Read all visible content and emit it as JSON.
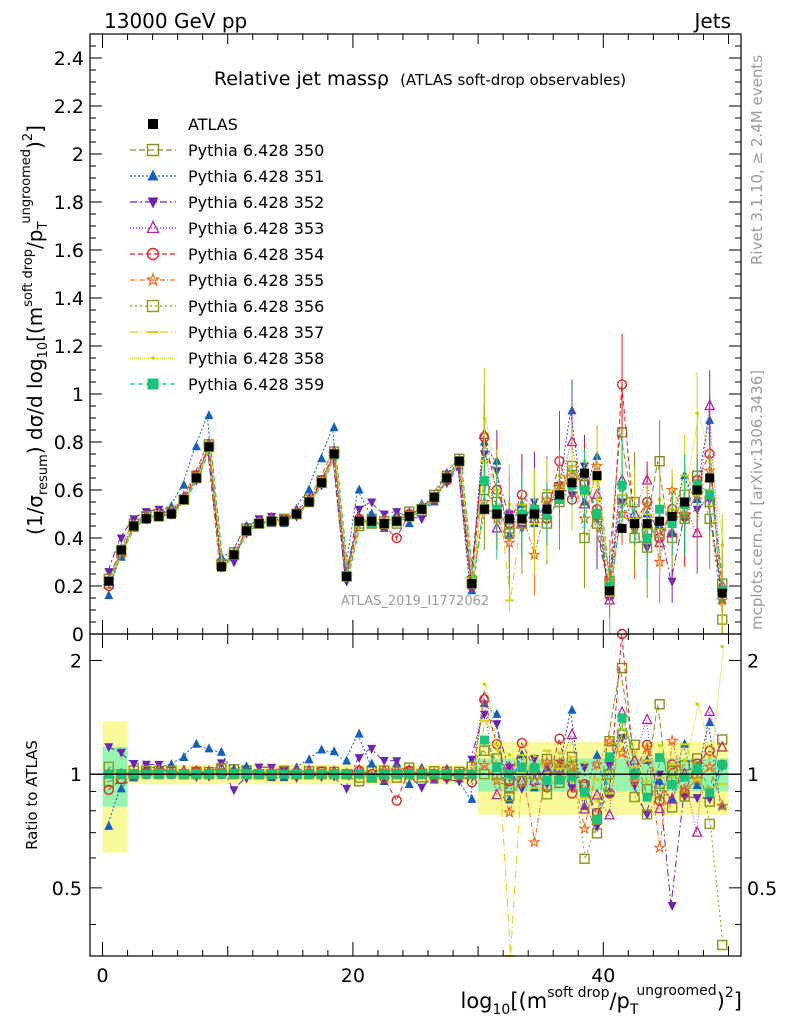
{
  "header": {
    "left": "13000 GeV pp",
    "right": "Jets"
  },
  "side_text": {
    "top": "Rivet 3.1.10, ≥ 2.4M events",
    "bottom": "mcplots.cern.ch [arXiv:1306.3436]"
  },
  "chart_data": {
    "type": "scatter",
    "title": "Relative jet massρ",
    "subtitle": "(ATLAS soft-drop observables)",
    "watermark": "ATLAS_2019_I1772062",
    "ylabel_top": "(1/σresum) dσ/d log10[(m soft drop/pT ungroomed)2]",
    "ylabel_bottom": "Ratio to ATLAS",
    "xlabel": "log10[(m soft drop/pT ungroomed)2]",
    "xlim": [
      -1,
      51
    ],
    "ylim_top": [
      0,
      2.5
    ],
    "ylim_bottom": [
      0.33,
      2.35
    ],
    "x_ticks": [
      "0",
      "20",
      "40"
    ],
    "y_ticks_top": [
      "0",
      "0.2",
      "0.4",
      "0.6",
      "0.8",
      "1",
      "1.2",
      "1.4",
      "1.6",
      "1.8",
      "2",
      "2.2",
      "2.4"
    ],
    "y_ticks_bottom": [
      "0.5",
      "1",
      "2"
    ],
    "legend": [
      {
        "label": "ATLAS",
        "color": "#000000",
        "marker": "square-filled"
      },
      {
        "label": "Pythia 6.428 350",
        "color": "#8c8c1e",
        "marker": "square-open"
      },
      {
        "label": "Pythia 6.428 351",
        "color": "#1560bd",
        "marker": "triangle-up"
      },
      {
        "label": "Pythia 6.428 352",
        "color": "#6a26b3",
        "marker": "triangle-down"
      },
      {
        "label": "Pythia 6.428 353",
        "color": "#b5259e",
        "marker": "triangle-open"
      },
      {
        "label": "Pythia 6.428 354",
        "color": "#e02424",
        "marker": "circle-open"
      },
      {
        "label": "Pythia 6.428 355",
        "color": "#f06a1c",
        "marker": "star"
      },
      {
        "label": "Pythia 6.428 356",
        "color": "#8a9a15",
        "marker": "square-open"
      },
      {
        "label": "Pythia 6.428 357",
        "color": "#d8d010",
        "marker": "dash"
      },
      {
        "label": "Pythia 6.428 358",
        "color": "#c6d613",
        "marker": "dot"
      },
      {
        "label": "Pythia 6.428 359",
        "color": "#18c47a",
        "marker": "square-filled"
      }
    ],
    "x": [
      0.5,
      1.5,
      2.5,
      3.5,
      4.5,
      5.5,
      6.5,
      7.5,
      8.5,
      9.5,
      10.5,
      11.5,
      12.5,
      13.5,
      14.5,
      15.5,
      16.5,
      17.5,
      18.5,
      19.5,
      20.5,
      21.5,
      22.5,
      23.5,
      24.5,
      25.5,
      26.5,
      27.5,
      28.5,
      29.5,
      30.5,
      31.5,
      32.5,
      33.5,
      34.5,
      35.5,
      36.5,
      37.5,
      38.5,
      39.5,
      40.5,
      41.5,
      42.5,
      43.5,
      44.5,
      45.5,
      46.5,
      47.5,
      48.5,
      49.5
    ],
    "atlas": [
      0.22,
      0.35,
      0.45,
      0.48,
      0.49,
      0.5,
      0.56,
      0.65,
      0.78,
      0.28,
      0.33,
      0.43,
      0.46,
      0.47,
      0.47,
      0.5,
      0.55,
      0.63,
      0.75,
      0.24,
      0.47,
      0.47,
      0.46,
      0.47,
      0.49,
      0.52,
      0.57,
      0.65,
      0.72,
      0.21,
      0.52,
      0.5,
      0.48,
      0.48,
      0.5,
      0.52,
      0.58,
      0.63,
      0.67,
      0.66,
      0.18,
      0.44,
      0.46,
      0.46,
      0.47,
      0.49,
      0.55,
      0.6,
      0.65,
      0.17
    ],
    "series": [
      {
        "name": "Pythia 6.428 350",
        "values": [
          0.21,
          0.34,
          0.46,
          0.49,
          0.5,
          0.51,
          0.56,
          0.66,
          0.79,
          0.29,
          0.34,
          0.44,
          0.46,
          0.47,
          0.48,
          0.5,
          0.56,
          0.64,
          0.76,
          0.24,
          0.45,
          0.48,
          0.47,
          0.46,
          0.51,
          0.51,
          0.58,
          0.66,
          0.73,
          0.22,
          0.6,
          0.55,
          0.44,
          0.52,
          0.5,
          0.57,
          0.55,
          0.7,
          0.62,
          0.46,
          0.22,
          0.84,
          0.55,
          0.42,
          0.72,
          0.4,
          0.58,
          0.66,
          0.55,
          0.21
        ]
      },
      {
        "name": "Pythia 6.428 351",
        "values": [
          0.16,
          0.32,
          0.44,
          0.5,
          0.51,
          0.53,
          0.62,
          0.78,
          0.91,
          0.32,
          0.34,
          0.45,
          0.47,
          0.46,
          0.46,
          0.52,
          0.6,
          0.73,
          0.86,
          0.26,
          0.6,
          0.5,
          0.44,
          0.5,
          0.46,
          0.54,
          0.55,
          0.67,
          0.7,
          0.18,
          0.8,
          0.72,
          0.41,
          0.54,
          0.46,
          0.54,
          0.57,
          0.93,
          0.55,
          0.74,
          0.16,
          0.62,
          0.46,
          0.5,
          0.45,
          0.42,
          0.66,
          0.56,
          0.89,
          0.14
        ]
      },
      {
        "name": "Pythia 6.428 352",
        "values": [
          0.26,
          0.4,
          0.48,
          0.51,
          0.52,
          0.5,
          0.56,
          0.64,
          0.77,
          0.3,
          0.3,
          0.42,
          0.48,
          0.49,
          0.48,
          0.49,
          0.55,
          0.62,
          0.74,
          0.22,
          0.52,
          0.55,
          0.5,
          0.51,
          0.49,
          0.48,
          0.56,
          0.63,
          0.69,
          0.23,
          0.75,
          0.68,
          0.5,
          0.44,
          0.55,
          0.49,
          0.62,
          0.58,
          0.7,
          0.48,
          0.19,
          0.55,
          0.43,
          0.36,
          0.47,
          0.22,
          0.48,
          0.52,
          0.56,
          0.18
        ]
      },
      {
        "name": "Pythia 6.428 353",
        "values": [
          0.22,
          0.35,
          0.45,
          0.49,
          0.5,
          0.51,
          0.57,
          0.66,
          0.79,
          0.29,
          0.33,
          0.43,
          0.46,
          0.48,
          0.47,
          0.51,
          0.56,
          0.63,
          0.76,
          0.24,
          0.48,
          0.46,
          0.47,
          0.48,
          0.5,
          0.52,
          0.57,
          0.66,
          0.72,
          0.21,
          0.83,
          0.44,
          0.5,
          0.46,
          0.48,
          0.53,
          0.6,
          0.8,
          0.54,
          0.58,
          0.14,
          0.64,
          0.5,
          0.64,
          0.38,
          0.42,
          0.55,
          0.42,
          0.95,
          0.2
        ]
      },
      {
        "name": "Pythia 6.428 354",
        "values": [
          0.2,
          0.34,
          0.45,
          0.48,
          0.49,
          0.5,
          0.56,
          0.66,
          0.78,
          0.28,
          0.33,
          0.43,
          0.46,
          0.47,
          0.48,
          0.5,
          0.55,
          0.64,
          0.75,
          0.24,
          0.48,
          0.47,
          0.45,
          0.4,
          0.5,
          0.52,
          0.56,
          0.64,
          0.72,
          0.2,
          0.82,
          0.6,
          0.46,
          0.58,
          0.52,
          0.48,
          0.72,
          0.56,
          0.63,
          0.52,
          0.16,
          1.04,
          0.46,
          0.55,
          0.4,
          0.52,
          0.49,
          0.64,
          0.75,
          0.18
        ]
      },
      {
        "name": "Pythia 6.428 355",
        "values": [
          0.22,
          0.35,
          0.45,
          0.48,
          0.5,
          0.5,
          0.56,
          0.65,
          0.78,
          0.28,
          0.33,
          0.43,
          0.46,
          0.47,
          0.47,
          0.5,
          0.55,
          0.63,
          0.75,
          0.24,
          0.47,
          0.46,
          0.47,
          0.48,
          0.49,
          0.53,
          0.57,
          0.65,
          0.71,
          0.21,
          0.55,
          0.48,
          0.38,
          0.5,
          0.33,
          0.56,
          0.62,
          0.66,
          0.48,
          0.7,
          0.22,
          0.5,
          0.44,
          0.54,
          0.3,
          0.6,
          0.5,
          0.58,
          0.68,
          0.14
        ]
      },
      {
        "name": "Pythia 6.428 356",
        "values": [
          0.23,
          0.35,
          0.45,
          0.49,
          0.49,
          0.51,
          0.56,
          0.65,
          0.78,
          0.29,
          0.33,
          0.43,
          0.46,
          0.47,
          0.48,
          0.5,
          0.55,
          0.63,
          0.75,
          0.24,
          0.46,
          0.46,
          0.46,
          0.47,
          0.49,
          0.52,
          0.57,
          0.65,
          0.72,
          0.22,
          0.52,
          0.5,
          0.42,
          0.46,
          0.5,
          0.46,
          0.6,
          0.66,
          0.4,
          0.5,
          0.18,
          0.56,
          0.4,
          0.36,
          0.42,
          0.5,
          0.48,
          0.6,
          0.48,
          0.06
        ]
      },
      {
        "name": "Pythia 6.428 357",
        "values": [
          0.22,
          0.35,
          0.45,
          0.48,
          0.49,
          0.5,
          0.56,
          0.65,
          0.78,
          0.28,
          0.33,
          0.43,
          0.46,
          0.47,
          0.47,
          0.5,
          0.55,
          0.63,
          0.75,
          0.24,
          0.47,
          0.46,
          0.46,
          0.47,
          0.49,
          0.52,
          0.57,
          0.65,
          0.72,
          0.21,
          0.72,
          0.6,
          0.14,
          0.54,
          0.46,
          0.6,
          0.6,
          0.7,
          0.58,
          0.64,
          0.16,
          0.58,
          0.48,
          0.5,
          0.46,
          0.52,
          0.66,
          0.58,
          0.6,
          0.16
        ]
      },
      {
        "name": "Pythia 6.428 358",
        "values": [
          0.22,
          0.35,
          0.45,
          0.48,
          0.49,
          0.5,
          0.56,
          0.65,
          0.78,
          0.28,
          0.33,
          0.43,
          0.46,
          0.47,
          0.47,
          0.5,
          0.55,
          0.63,
          0.75,
          0.24,
          0.47,
          0.46,
          0.46,
          0.47,
          0.49,
          0.52,
          0.57,
          0.66,
          0.72,
          0.21,
          0.9,
          0.58,
          0.54,
          0.48,
          0.56,
          0.52,
          0.66,
          0.6,
          0.72,
          0.56,
          0.18,
          0.6,
          0.52,
          0.44,
          0.56,
          0.48,
          0.6,
          0.92,
          0.72,
          0.37
        ]
      },
      {
        "name": "Pythia 6.428 359",
        "values": [
          0.22,
          0.35,
          0.45,
          0.48,
          0.49,
          0.5,
          0.56,
          0.65,
          0.78,
          0.28,
          0.33,
          0.43,
          0.46,
          0.47,
          0.47,
          0.5,
          0.55,
          0.63,
          0.75,
          0.24,
          0.47,
          0.46,
          0.46,
          0.47,
          0.49,
          0.52,
          0.57,
          0.65,
          0.72,
          0.21,
          0.64,
          0.52,
          0.48,
          0.5,
          0.52,
          0.5,
          0.56,
          0.62,
          0.6,
          0.5,
          0.2,
          0.62,
          0.46,
          0.4,
          0.52,
          0.46,
          0.54,
          0.62,
          0.58,
          0.18
        ]
      }
    ]
  }
}
